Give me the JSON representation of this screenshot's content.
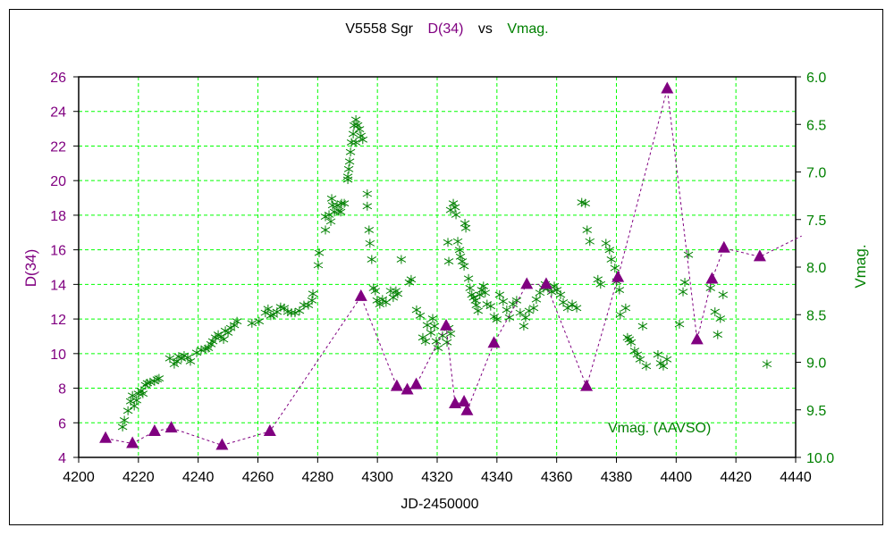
{
  "chart_data": {
    "type": "scatter",
    "title": {
      "star": "V5558 Sgr",
      "left_series": "D(34)",
      "vs": "vs",
      "right_series": "Vmag."
    },
    "xlabel": "JD-2450000",
    "ylabel_left": "D(34)",
    "ylabel_right": "Vmag.",
    "xlim": [
      4200,
      4440
    ],
    "ylim_left": [
      4,
      26
    ],
    "ylim_right": [
      6.0,
      10.0
    ],
    "right_axis_inverted": true,
    "grid": true,
    "x_ticks": [
      "4200",
      "4220",
      "4240",
      "4260",
      "4280",
      "4300",
      "4320",
      "4340",
      "4360",
      "4380",
      "4400",
      "4420",
      "4440"
    ],
    "left_ticks": [
      "4",
      "6",
      "8",
      "10",
      "12",
      "14",
      "16",
      "18",
      "20",
      "22",
      "24",
      "26"
    ],
    "right_ticks": [
      "6.0",
      "6.5",
      "7.0",
      "7.5",
      "8.0",
      "8.5",
      "9.0",
      "9.5",
      "10.0"
    ],
    "legend_label": "Vmag. (AAVSO)",
    "colors": {
      "d34": "#800080",
      "vmag": "#008000",
      "grid": "#00ff00",
      "text": "#000000"
    },
    "series": [
      {
        "name": "D(34)",
        "axis": "left",
        "marker": "triangle",
        "connected": "dashed",
        "points": [
          [
            4209,
            5.1
          ],
          [
            4218,
            4.8
          ],
          [
            4225.4,
            5.5
          ],
          [
            4231,
            5.7
          ],
          [
            4248,
            4.7
          ],
          [
            4264,
            5.5
          ],
          [
            4294.5,
            13.3
          ],
          [
            4306.5,
            8.1
          ],
          [
            4310,
            7.9
          ],
          [
            4313,
            8.2
          ],
          [
            4323,
            11.6
          ],
          [
            4326,
            7.1
          ],
          [
            4329,
            7.2
          ],
          [
            4330,
            6.7
          ],
          [
            4339,
            10.6
          ],
          [
            4350,
            14.0
          ],
          [
            4356.5,
            14.0
          ],
          [
            4370,
            8.1
          ],
          [
            4380.5,
            14.4
          ],
          [
            4397,
            25.3
          ],
          [
            4407,
            10.8
          ],
          [
            4412,
            14.3
          ],
          [
            4416,
            16.1
          ],
          [
            4428,
            15.6
          ]
        ],
        "line_continuation": [
          4442,
          16.8
        ]
      },
      {
        "name": "Vmag. (AAVSO)",
        "axis": "right",
        "marker": "asterisk",
        "points": [
          [
            4214.7,
            9.68
          ],
          [
            4215.3,
            9.61
          ],
          [
            4216.5,
            9.51
          ],
          [
            4217.4,
            9.41
          ],
          [
            4218.0,
            9.35
          ],
          [
            4218.6,
            9.46
          ],
          [
            4219.4,
            9.4
          ],
          [
            4220.0,
            9.33
          ],
          [
            4220.9,
            9.3
          ],
          [
            4221.5,
            9.33
          ],
          [
            4222.4,
            9.24
          ],
          [
            4223.0,
            9.22
          ],
          [
            4223.9,
            9.21
          ],
          [
            4225.4,
            9.2
          ],
          [
            4226.3,
            9.18
          ],
          [
            4226.9,
            9.17
          ],
          [
            4230.5,
            8.96
          ],
          [
            4232.0,
            9.02
          ],
          [
            4232.9,
            8.99
          ],
          [
            4233.5,
            8.94
          ],
          [
            4234.4,
            8.96
          ],
          [
            4235.3,
            8.93
          ],
          [
            4236.5,
            8.95
          ],
          [
            4237.4,
            8.99
          ],
          [
            4239.5,
            8.9
          ],
          [
            4241.0,
            8.87
          ],
          [
            4242.5,
            8.86
          ],
          [
            4243.4,
            8.85
          ],
          [
            4244.3,
            8.81
          ],
          [
            4244.9,
            8.78
          ],
          [
            4245.8,
            8.74
          ],
          [
            4246.7,
            8.71
          ],
          [
            4247.6,
            8.73
          ],
          [
            4248.5,
            8.76
          ],
          [
            4249.1,
            8.67
          ],
          [
            4250.0,
            8.69
          ],
          [
            4250.9,
            8.64
          ],
          [
            4252.1,
            8.61
          ],
          [
            4253.0,
            8.57
          ],
          [
            4258.0,
            8.59
          ],
          [
            4260.4,
            8.57
          ],
          [
            4262.5,
            8.48
          ],
          [
            4263.4,
            8.44
          ],
          [
            4264.3,
            8.51
          ],
          [
            4265.2,
            8.5
          ],
          [
            4266.4,
            8.47
          ],
          [
            4267.6,
            8.42
          ],
          [
            4268.8,
            8.43
          ],
          [
            4270.0,
            8.47
          ],
          [
            4271.2,
            8.48
          ],
          [
            4272.4,
            8.48
          ],
          [
            4273.9,
            8.46
          ],
          [
            4275.4,
            8.4
          ],
          [
            4276.9,
            8.4
          ],
          [
            4278.1,
            8.35
          ],
          [
            4278.4,
            8.28
          ],
          [
            4280.2,
            7.98
          ],
          [
            4280.5,
            7.85
          ],
          [
            4282.6,
            7.61
          ],
          [
            4283.8,
            7.45
          ],
          [
            4284.7,
            7.28
          ],
          [
            4285.0,
            7.35
          ],
          [
            4285.6,
            7.42
          ],
          [
            4286.5,
            7.35
          ],
          [
            4287.1,
            7.41
          ],
          [
            4288.0,
            7.33
          ],
          [
            4288.9,
            7.33
          ],
          [
            4287.7,
            7.42
          ],
          [
            4282.6,
            7.47
          ],
          [
            4284.4,
            7.52
          ],
          [
            4290.1,
            7.08
          ],
          [
            4290.4,
            6.97
          ],
          [
            4290.7,
            6.89
          ],
          [
            4291.0,
            6.79
          ],
          [
            4291.3,
            6.69
          ],
          [
            4291.9,
            6.6
          ],
          [
            4292.2,
            6.51
          ],
          [
            4292.8,
            6.45
          ],
          [
            4293.4,
            6.51
          ],
          [
            4294.0,
            6.55
          ],
          [
            4294.5,
            6.62
          ],
          [
            4295.1,
            6.66
          ],
          [
            4292.8,
            6.69
          ],
          [
            4290.1,
            7.05
          ],
          [
            4296.6,
            7.23
          ],
          [
            4296.6,
            7.36
          ],
          [
            4297.2,
            7.61
          ],
          [
            4297.5,
            7.75
          ],
          [
            4298.1,
            7.92
          ],
          [
            4298.7,
            8.22
          ],
          [
            4299.3,
            8.25
          ],
          [
            4299.9,
            8.35
          ],
          [
            4300.8,
            8.39
          ],
          [
            4301.7,
            8.34
          ],
          [
            4302.9,
            8.37
          ],
          [
            4304.4,
            8.25
          ],
          [
            4305.3,
            8.32
          ],
          [
            4306.2,
            8.25
          ],
          [
            4306.8,
            8.28
          ],
          [
            4308.0,
            7.92
          ],
          [
            4310.7,
            8.16
          ],
          [
            4311.3,
            8.13
          ],
          [
            4313.1,
            8.45
          ],
          [
            4314.3,
            8.51
          ],
          [
            4315.2,
            8.74
          ],
          [
            4316.1,
            8.78
          ],
          [
            4316.7,
            8.61
          ],
          [
            4317.9,
            8.69
          ],
          [
            4318.5,
            8.54
          ],
          [
            4319.1,
            8.62
          ],
          [
            4319.7,
            8.78
          ],
          [
            4320.3,
            8.85
          ],
          [
            4321.8,
            8.72
          ],
          [
            4323.3,
            8.79
          ],
          [
            4323.9,
            8.64
          ],
          [
            4324.5,
            8.7
          ],
          [
            4323.6,
            7.74
          ],
          [
            4323.9,
            7.94
          ],
          [
            4324.5,
            7.4
          ],
          [
            4325.4,
            7.33
          ],
          [
            4326.0,
            7.37
          ],
          [
            4326.3,
            7.45
          ],
          [
            4326.9,
            7.73
          ],
          [
            4327.5,
            7.82
          ],
          [
            4327.8,
            7.89
          ],
          [
            4328.4,
            7.94
          ],
          [
            4329.0,
            7.99
          ],
          [
            4329.6,
            7.59
          ],
          [
            4329.3,
            7.54
          ],
          [
            4330.5,
            8.12
          ],
          [
            4331.0,
            8.22
          ],
          [
            4331.6,
            8.29
          ],
          [
            4332.2,
            8.32
          ],
          [
            4332.8,
            8.35
          ],
          [
            4333.1,
            8.4
          ],
          [
            4333.7,
            8.46
          ],
          [
            4334.3,
            8.29
          ],
          [
            4334.9,
            8.24
          ],
          [
            4335.5,
            8.2
          ],
          [
            4336.1,
            8.27
          ],
          [
            4336.7,
            8.39
          ],
          [
            4337.9,
            8.41
          ],
          [
            4339.1,
            8.52
          ],
          [
            4340.0,
            8.55
          ],
          [
            4340.9,
            8.29
          ],
          [
            4342.1,
            8.36
          ],
          [
            4343.3,
            8.45
          ],
          [
            4344.2,
            8.53
          ],
          [
            4345.4,
            8.39
          ],
          [
            4346.6,
            8.35
          ],
          [
            4347.8,
            8.48
          ],
          [
            4349.0,
            8.62
          ],
          [
            4349.6,
            8.53
          ],
          [
            4350.8,
            8.46
          ],
          [
            4352.3,
            8.43
          ],
          [
            4353.2,
            8.34
          ],
          [
            4354.4,
            8.27
          ],
          [
            4355.6,
            8.22
          ],
          [
            4356.2,
            8.18
          ],
          [
            4357.1,
            8.22
          ],
          [
            4358.3,
            8.26
          ],
          [
            4359.2,
            8.2
          ],
          [
            4360.1,
            8.24
          ],
          [
            4361.3,
            8.29
          ],
          [
            4362.2,
            8.37
          ],
          [
            4363.7,
            8.43
          ],
          [
            4365.2,
            8.39
          ],
          [
            4366.7,
            8.43
          ],
          [
            4368.4,
            7.32
          ],
          [
            4369.6,
            7.33
          ],
          [
            4370.2,
            7.61
          ],
          [
            4371.1,
            7.73
          ],
          [
            4373.8,
            8.13
          ],
          [
            4374.7,
            8.18
          ],
          [
            4376.5,
            7.75
          ],
          [
            4377.7,
            7.82
          ],
          [
            4378.3,
            7.92
          ],
          [
            4379.5,
            8.01
          ],
          [
            4380.1,
            8.15
          ],
          [
            4381.0,
            8.24
          ],
          [
            4381.3,
            8.5
          ],
          [
            4383.1,
            8.43
          ],
          [
            4383.7,
            8.74
          ],
          [
            4384.3,
            8.76
          ],
          [
            4384.9,
            8.79
          ],
          [
            4386.1,
            8.88
          ],
          [
            4387.0,
            8.92
          ],
          [
            4387.9,
            8.97
          ],
          [
            4388.8,
            8.62
          ],
          [
            4390.0,
            9.04
          ],
          [
            4393.9,
            8.92
          ],
          [
            4394.8,
            9.01
          ],
          [
            4395.7,
            9.04
          ],
          [
            4396.9,
            8.97
          ],
          [
            4401.1,
            8.6
          ],
          [
            4402.3,
            8.26
          ],
          [
            4402.9,
            8.16
          ],
          [
            4404.1,
            7.87
          ],
          [
            4411.5,
            8.22
          ],
          [
            4413.0,
            8.47
          ],
          [
            4413.9,
            8.71
          ],
          [
            4414.8,
            8.54
          ],
          [
            4415.7,
            8.29
          ],
          [
            4430.4,
            9.02
          ]
        ]
      }
    ]
  }
}
